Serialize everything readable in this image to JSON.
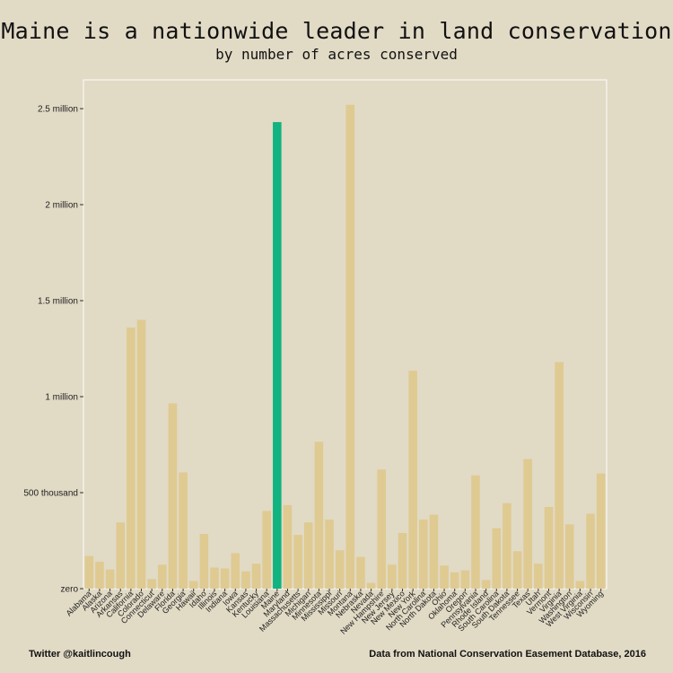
{
  "title": "Maine is a nationwide leader in land conservation",
  "subtitle": "by number of acres conserved",
  "footer": {
    "left": "Twitter @kaitlincough",
    "right": "Data from National Conservation Easement Database, 2016"
  },
  "colors": {
    "background": "#e1dac5",
    "bar": "#dfca91",
    "highlight": "#11b37f",
    "frame": "#ffffff"
  },
  "chart_data": {
    "type": "bar",
    "title": "Maine is a nationwide leader in land conservation",
    "subtitle": "by number of acres conserved",
    "xlabel": "",
    "ylabel": "",
    "ylim": [
      0,
      2650000
    ],
    "yticks": [
      {
        "value": 0,
        "label": "zero"
      },
      {
        "value": 500000,
        "label": "500 thousand"
      },
      {
        "value": 1000000,
        "label": "1 million"
      },
      {
        "value": 1500000,
        "label": "1.5 million"
      },
      {
        "value": 2000000,
        "label": "2 million"
      },
      {
        "value": 2500000,
        "label": "2.5 million"
      }
    ],
    "grid": false,
    "highlight": "Maine",
    "categories": [
      "Alabama",
      "Alaska",
      "Arizona",
      "Arkansas",
      "California",
      "Colorado",
      "Connecticut",
      "Delaware",
      "Florida",
      "Georgia",
      "Hawaii",
      "Idaho",
      "Illinois",
      "Indiana",
      "Iowa",
      "Kansas",
      "Kentucky",
      "Louisiana",
      "Maine",
      "Maryland",
      "Massachusetts",
      "Michigan",
      "Minnesota",
      "Mississippi",
      "Missouri",
      "Montana",
      "Nebraska",
      "Nevada",
      "New Hampshire",
      "New Jersey",
      "New Mexico",
      "New York",
      "North Carolina",
      "North Dakota",
      "Ohio",
      "Oklahoma",
      "Oregon",
      "Pennsylvania",
      "Rhode Island",
      "South Carolina",
      "South Dakota",
      "Tennessee",
      "Texas",
      "Utah",
      "Vermont",
      "Virginia",
      "Washington",
      "West Virginia",
      "Wisconsin",
      "Wyoming"
    ],
    "values": [
      170000,
      140000,
      100000,
      345000,
      1360000,
      1400000,
      50000,
      125000,
      965000,
      605000,
      40000,
      285000,
      110000,
      105000,
      185000,
      90000,
      130000,
      405000,
      2430000,
      435000,
      280000,
      345000,
      765000,
      360000,
      200000,
      2520000,
      165000,
      30000,
      620000,
      125000,
      290000,
      1135000,
      360000,
      385000,
      120000,
      85000,
      95000,
      590000,
      45000,
      315000,
      445000,
      195000,
      675000,
      130000,
      425000,
      1180000,
      335000,
      40000,
      390000,
      600000
    ]
  }
}
